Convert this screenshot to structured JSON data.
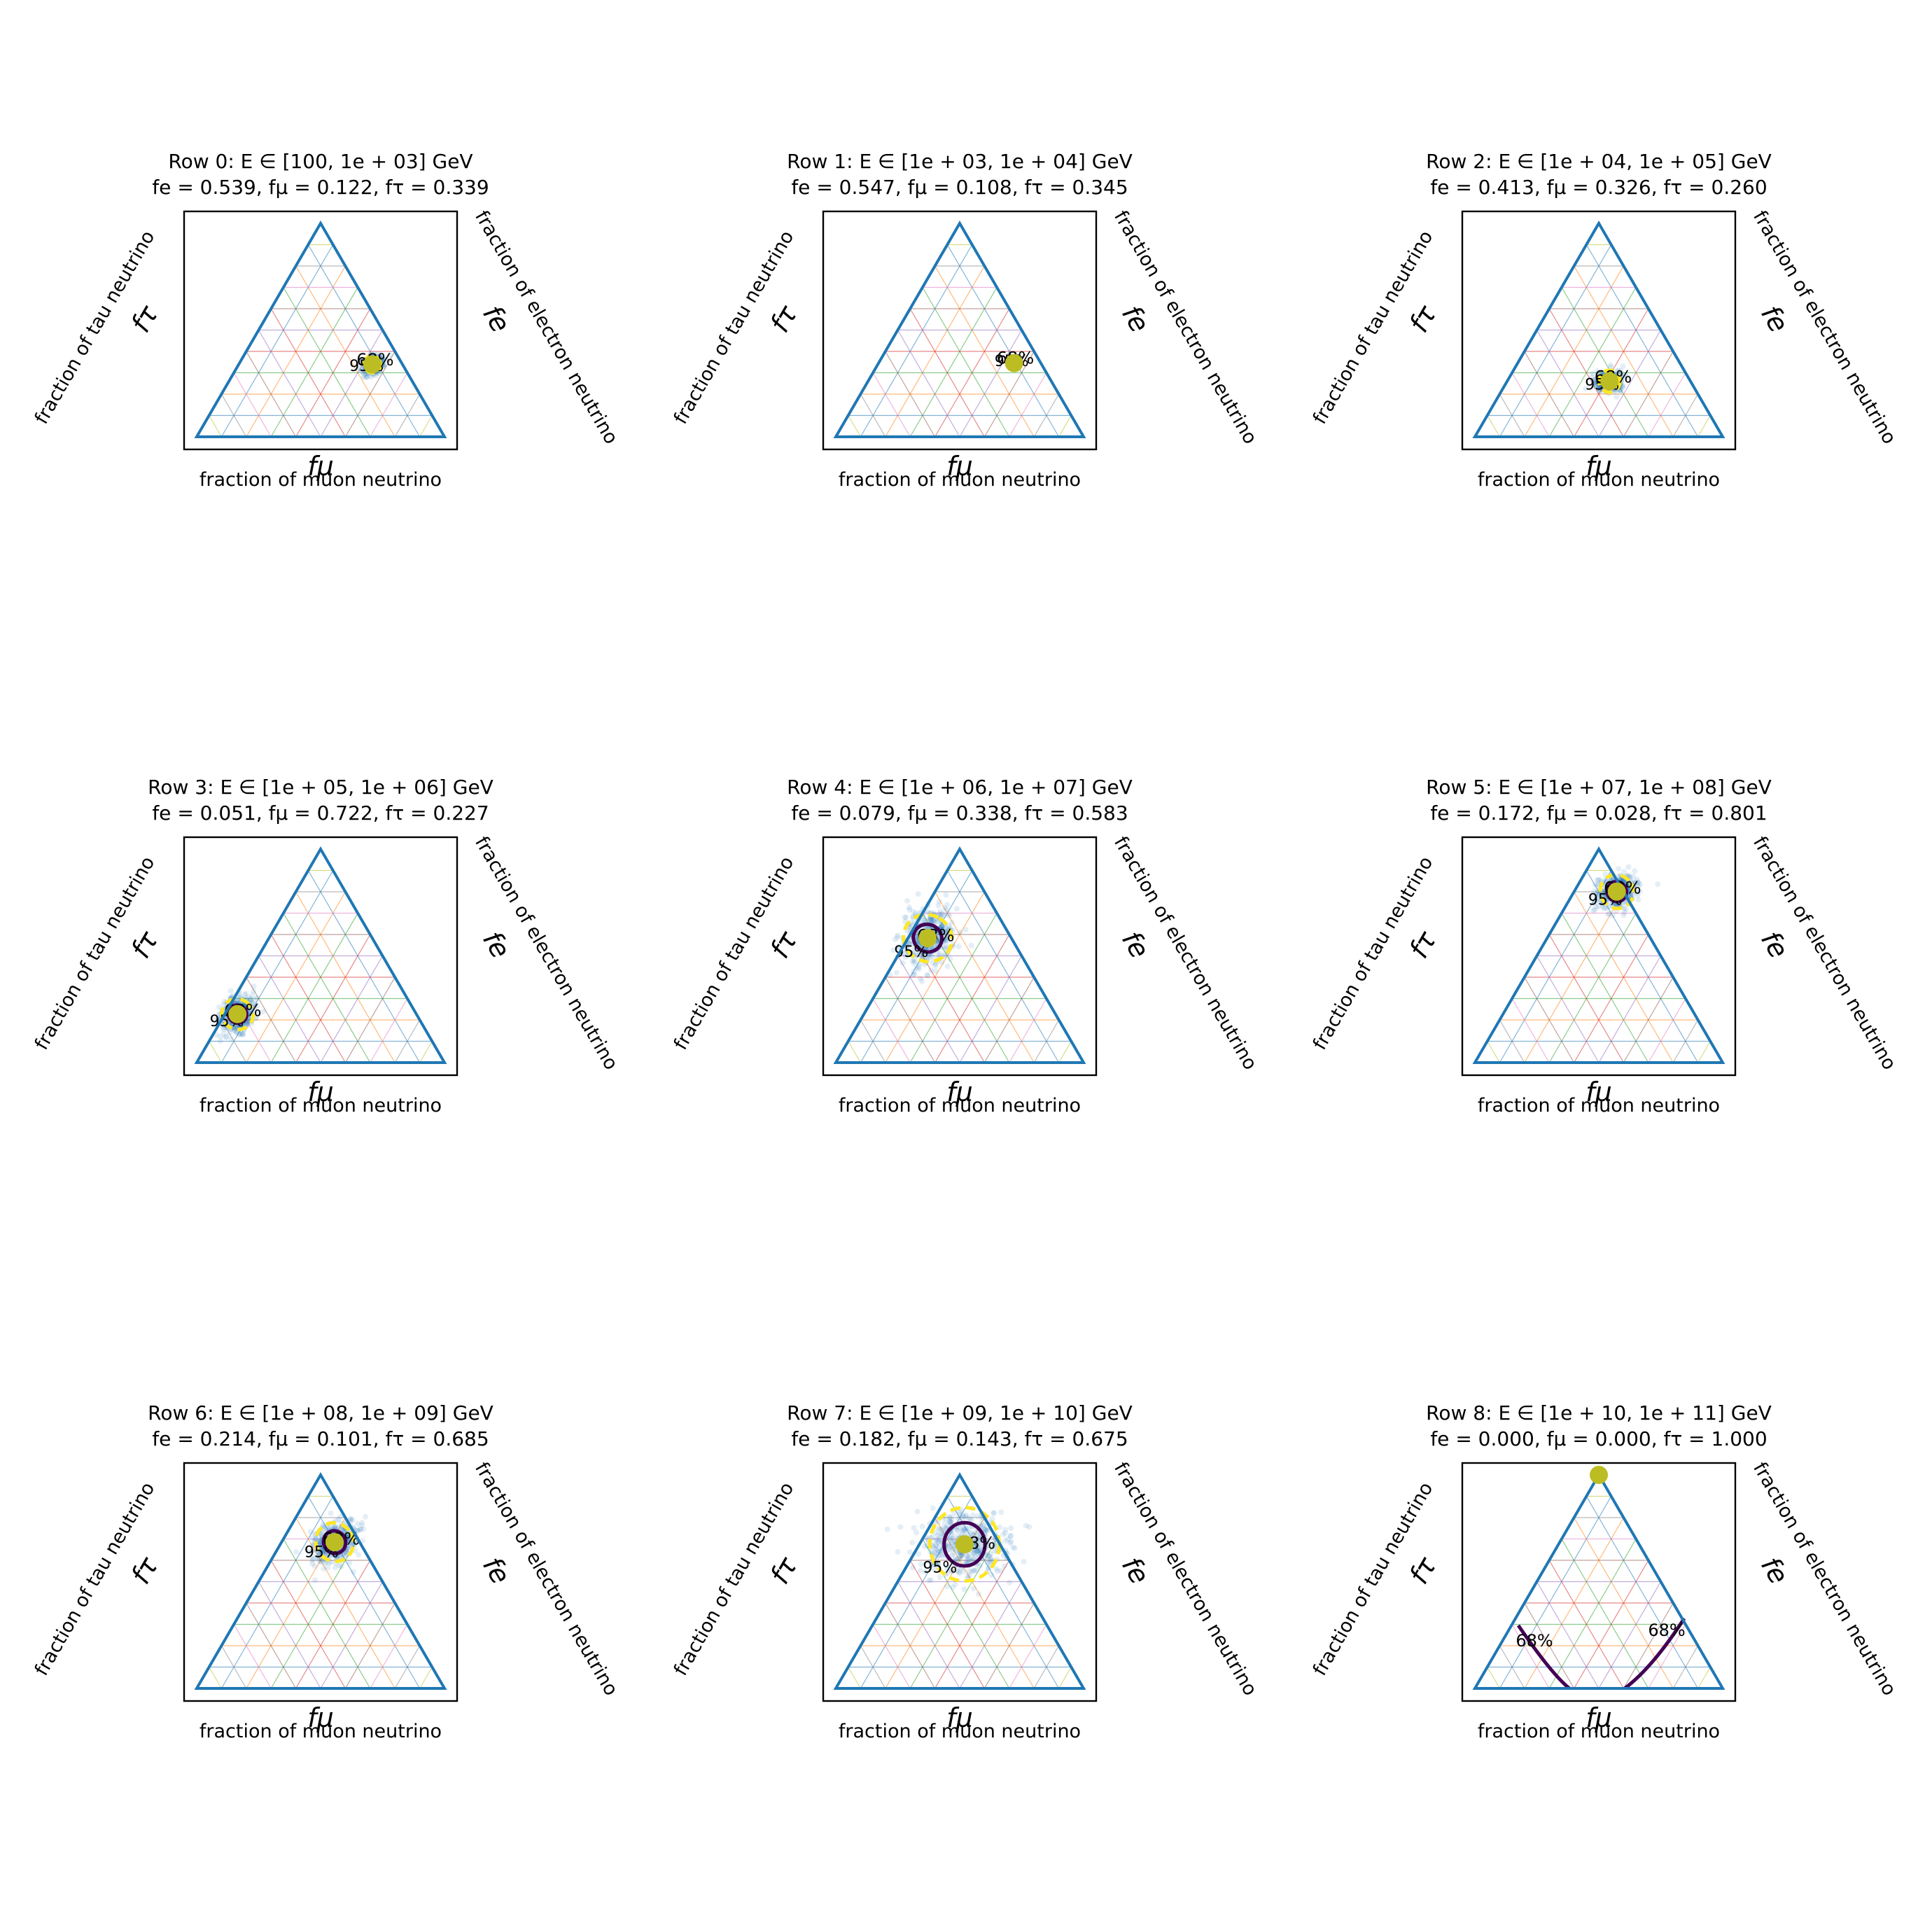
{
  "figure": {
    "title": "",
    "axis_labels": {
      "bottom_symbol": "fμ",
      "bottom_label": "fraction of muon neutrino",
      "left_symbol": "fτ",
      "left_label": "fraction of tau neutrino",
      "right_symbol": "fe",
      "right_label": "fraction of electron neutrino"
    },
    "contour_labels": {
      "inner": "68%",
      "outer": "95%"
    },
    "colors": {
      "frame": "#1f77b4",
      "contour_inner": "#440154",
      "contour_outer": "#fde725",
      "best_fit": "#bcbd22",
      "samples": "#1f77b4",
      "grid": [
        "#1f77b4",
        "#ff7f0e",
        "#2ca02c",
        "#d62728",
        "#9467bd",
        "#8c564b",
        "#e377c2",
        "#7f7f7f",
        "#bcbd22",
        "#17becf"
      ]
    }
  },
  "chart_data": [
    {
      "type": "ternary",
      "row": 0,
      "title_line1": "Row 0: E ∈ [100, 1e + 03] GeV",
      "title_line2": "fe = 0.539,  fμ = 0.122,  fτ = 0.339",
      "fe": 0.539,
      "fmu": 0.122,
      "ftau": 0.339,
      "spread": 0.07,
      "contour68": true,
      "contour95": true,
      "tilt": 0.5
    },
    {
      "type": "ternary",
      "row": 1,
      "title_line1": "Row 1: E ∈ [1e + 03, 1e + 04] GeV",
      "title_line2": "fe = 0.547,  fμ = 0.108,  fτ = 0.345",
      "fe": 0.547,
      "fmu": 0.108,
      "ftau": 0.345,
      "spread": 0.03,
      "contour68": true,
      "contour95": true,
      "tilt": 0.5
    },
    {
      "type": "ternary",
      "row": 2,
      "title_line1": "Row 2: E ∈ [1e + 04, 1e + 05] GeV",
      "title_line2": "fe = 0.413,  fμ = 0.326,  fτ = 0.260",
      "fe": 0.413,
      "fmu": 0.326,
      "ftau": 0.26,
      "spread": 0.09,
      "contour68": true,
      "contour95": true,
      "tilt": 0.1
    },
    {
      "type": "ternary",
      "row": 3,
      "title_line1": "Row 3: E ∈ [1e + 05, 1e + 06] GeV",
      "title_line2": "fe = 0.051,  fμ = 0.722,  fτ = 0.227",
      "fe": 0.051,
      "fmu": 0.722,
      "ftau": 0.227,
      "spread": 0.13,
      "contour68": true,
      "contour95": true,
      "tilt": 1.0
    },
    {
      "type": "ternary",
      "row": 4,
      "title_line1": "Row 4: E ∈ [1e + 06, 1e + 07] GeV",
      "title_line2": "fe = 0.079,  fμ = 0.338,  fτ = 0.583",
      "fe": 0.079,
      "fmu": 0.338,
      "ftau": 0.583,
      "spread": 0.2,
      "contour68": true,
      "contour95": true,
      "tilt": 1.0
    },
    {
      "type": "ternary",
      "row": 5,
      "title_line1": "Row 5: E ∈ [1e + 07, 1e + 08] GeV",
      "title_line2": "fe = 0.172,  fμ = 0.028,  fτ = 0.801",
      "fe": 0.172,
      "fmu": 0.028,
      "ftau": 0.801,
      "spread": 0.14,
      "contour68": true,
      "contour95": true,
      "tilt": 0.55
    },
    {
      "type": "ternary",
      "row": 6,
      "title_line1": "Row 6: E ∈ [1e + 08, 1e + 09] GeV",
      "title_line2": "fe = 0.214,  fμ = 0.101,  fτ = 0.685",
      "fe": 0.214,
      "fmu": 0.101,
      "ftau": 0.685,
      "spread": 0.16,
      "contour68": true,
      "contour95": true,
      "tilt": 0.55
    },
    {
      "type": "ternary",
      "row": 7,
      "title_line1": "Row 7: E ∈ [1e + 09, 1e + 10] GeV",
      "title_line2": "fe = 0.182,  fμ = 0.143,  fτ = 0.675",
      "fe": 0.182,
      "fmu": 0.143,
      "ftau": 0.675,
      "spread": 0.3,
      "contour68": true,
      "contour95": true,
      "tilt": 0.0
    },
    {
      "type": "ternary",
      "row": 8,
      "title_line1": "Row 8: E ∈ [1e + 10, 1e + 11] GeV",
      "title_line2": "fe = 0.000,  fμ = 0.000,  fτ = 1.000",
      "fe": 0.0,
      "fmu": 0.0,
      "ftau": 1.0,
      "spread": 0.0,
      "contour68": true,
      "contour95": false,
      "tilt": 0.0
    }
  ]
}
